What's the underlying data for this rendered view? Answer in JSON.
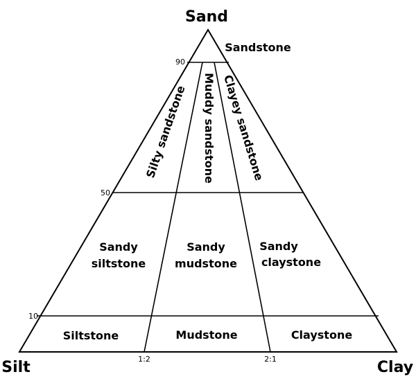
{
  "corners": {
    "top": "Sand",
    "bottom_left": "Silt",
    "bottom_right": "Clay"
  },
  "sand_ticks": [
    "90",
    "50",
    "10"
  ],
  "ratio_ticks": [
    "1:2",
    "2:1"
  ],
  "fields": {
    "sandstone": "Sandstone",
    "silty_sandstone": "Silty sandstone",
    "muddy_sandstone": "Muddy sandstone",
    "clayey_sandstone": "Clayey sandstone",
    "sandy_siltstone_1": "Sandy",
    "sandy_siltstone_2": "siltstone",
    "sandy_mudstone_1": "Sandy",
    "sandy_mudstone_2": "mudstone",
    "sandy_claystone_1": "Sandy",
    "sandy_claystone_2": "claystone",
    "siltstone": "Siltstone",
    "mudstone": "Mudstone",
    "claystone": "Claystone"
  }
}
